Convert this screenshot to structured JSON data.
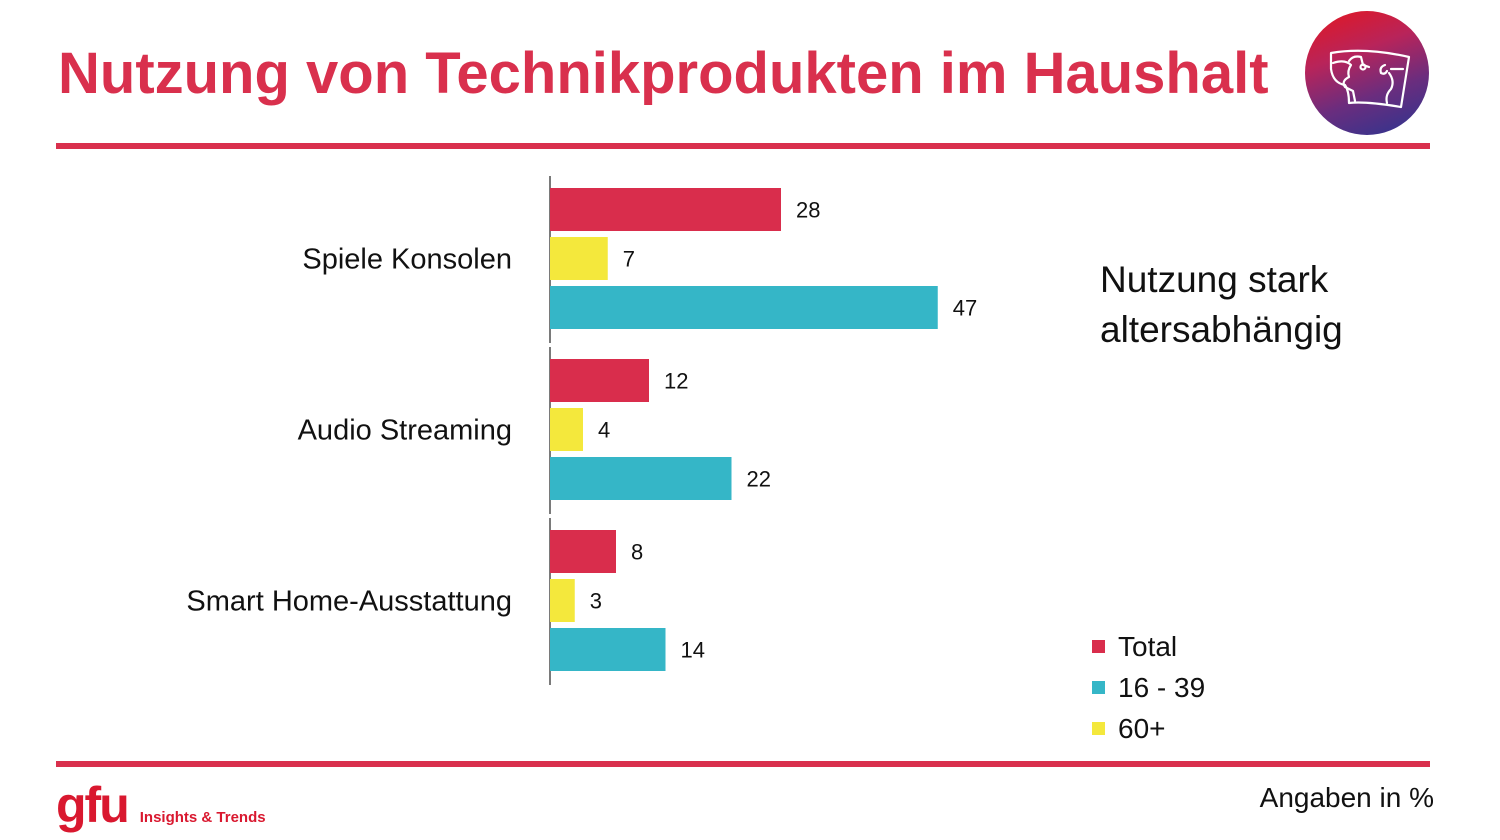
{
  "header": {
    "title": "Nutzung von Technikprodukten im Haushalt",
    "logo_icon": "two-faces-screen-logo"
  },
  "side_note": {
    "line1": "Nutzung stark",
    "line2": "altersabhängig"
  },
  "footer": {
    "brand": "gfu",
    "brand_tagline": "Insights & Trends",
    "units_note": "Angaben in %"
  },
  "colors": {
    "accent": "#d9304d",
    "total": "#d92d4c",
    "age_16_39": "#35b6c7",
    "age_60_plus": "#f4e83c"
  },
  "legend": [
    {
      "label": "Total",
      "color": "#d92d4c"
    },
    {
      "label": "16 - 39",
      "color": "#35b6c7"
    },
    {
      "label": "60+",
      "color": "#f4e83c"
    }
  ],
  "chart_data": {
    "type": "bar",
    "orientation": "horizontal",
    "title": "Nutzung von Technikprodukten im Haushalt",
    "xlabel": "",
    "ylabel": "",
    "unit": "%",
    "categories": [
      "Spiele Konsolen",
      "Audio Streaming",
      "Smart Home-Ausstattung"
    ],
    "series": [
      {
        "name": "Total",
        "color": "#d92d4c",
        "values": [
          28,
          12,
          8
        ]
      },
      {
        "name": "60+",
        "color": "#f4e83c",
        "values": [
          7,
          4,
          3
        ]
      },
      {
        "name": "16 - 39",
        "color": "#35b6c7",
        "values": [
          47,
          22,
          14
        ]
      }
    ],
    "xlim": [
      0,
      50
    ],
    "grid": false,
    "data_labels": true,
    "legend_position": "bottom-right"
  }
}
